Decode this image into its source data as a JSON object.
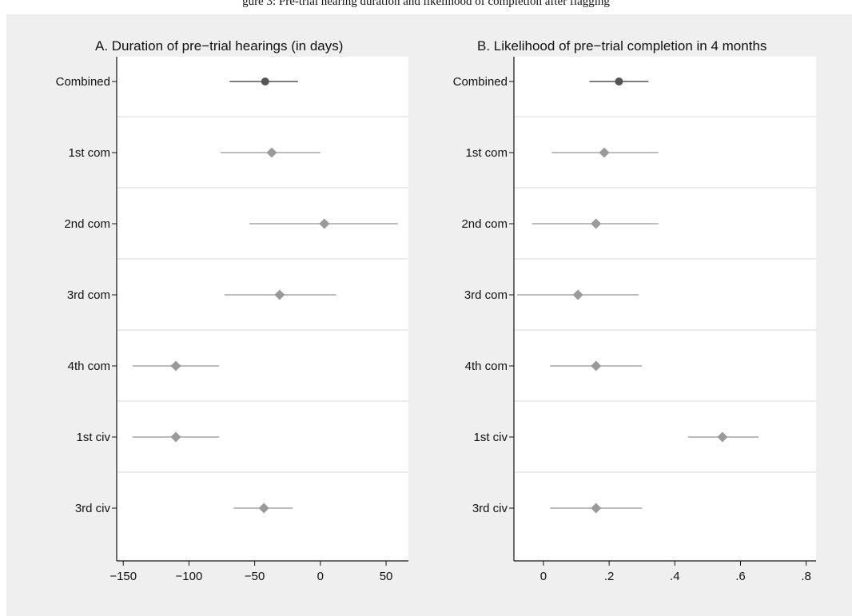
{
  "caption_fragment": "gure 3: Pre-trial hearing duration and likelihood of completion after flagging",
  "chart_data": [
    {
      "type": "scatter",
      "subtype": "forest-plot",
      "title": "A. Duration of pre−trial hearings (in days)",
      "xlabel": "",
      "ylabel": "",
      "xlim": [
        -155,
        67
      ],
      "xticks": [
        -150,
        -100,
        -50,
        0,
        50
      ],
      "xtick_labels": [
        "−150",
        "−100",
        "−50",
        "0",
        "50"
      ],
      "categories": [
        "Combined",
        "1st com",
        "2nd com",
        "3rd com",
        "4th com",
        "1st civ",
        "3rd civ"
      ],
      "estimates": [
        -42,
        -37,
        3,
        -31,
        -110,
        -110,
        -43
      ],
      "ci_low": [
        -69,
        -76,
        -54,
        -73,
        -143,
        -143,
        -66
      ],
      "ci_high": [
        -17,
        0,
        59,
        12,
        -77,
        -77,
        -21
      ],
      "markers": [
        "circle",
        "diamond",
        "diamond",
        "diamond",
        "diamond",
        "diamond",
        "diamond"
      ],
      "grid": true,
      "colors": {
        "combined": "#555555",
        "subgroup": "#9a9a9a",
        "ci_combined": "#555555",
        "ci_subgroup": "#a5a5a5"
      }
    },
    {
      "type": "scatter",
      "subtype": "forest-plot",
      "title": "B. Likelihood of pre−trial completion in 4 months",
      "xlabel": "",
      "ylabel": "",
      "xlim": [
        -0.09,
        0.83
      ],
      "xticks": [
        0,
        0.2,
        0.4,
        0.6,
        0.8
      ],
      "xtick_labels": [
        "0",
        ".2",
        ".4",
        ".6",
        ".8"
      ],
      "categories": [
        "Combined",
        "1st com",
        "2nd com",
        "3rd com",
        "4th com",
        "1st civ",
        "3rd civ"
      ],
      "estimates": [
        0.23,
        0.185,
        0.16,
        0.105,
        0.16,
        0.545,
        0.16
      ],
      "ci_low": [
        0.14,
        0.025,
        -0.035,
        -0.08,
        0.02,
        0.44,
        0.02
      ],
      "ci_high": [
        0.32,
        0.35,
        0.35,
        0.29,
        0.3,
        0.655,
        0.3
      ],
      "markers": [
        "circle",
        "diamond",
        "diamond",
        "diamond",
        "diamond",
        "diamond",
        "diamond"
      ],
      "grid": true,
      "colors": {
        "combined": "#555555",
        "subgroup": "#9a9a9a",
        "ci_combined": "#555555",
        "ci_subgroup": "#a5a5a5"
      }
    }
  ]
}
